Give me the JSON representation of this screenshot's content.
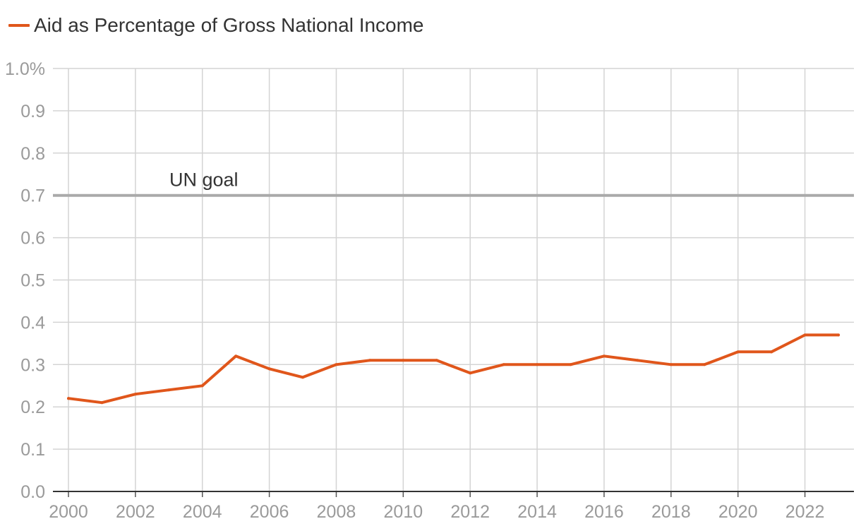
{
  "chart_data": {
    "type": "line",
    "title": "",
    "xlabel": "",
    "ylabel": "",
    "xlim": [
      2000,
      2023
    ],
    "ylim": [
      0,
      1.0
    ],
    "grid": true,
    "legend_placement": "top-left",
    "y_ticks": [
      "0.0",
      "0.1",
      "0.2",
      "0.3",
      "0.4",
      "0.5",
      "0.6",
      "0.7",
      "0.8",
      "0.9",
      "1.0%"
    ],
    "x_ticks": [
      "2000",
      "2002",
      "2004",
      "2006",
      "2008",
      "2010",
      "2012",
      "2014",
      "2016",
      "2018",
      "2020",
      "2022"
    ],
    "series": [
      {
        "name": "Aid as Percentage of Gross National Income",
        "color": "#e0561b",
        "x": [
          2000,
          2001,
          2002,
          2003,
          2004,
          2005,
          2006,
          2007,
          2008,
          2009,
          2010,
          2011,
          2012,
          2013,
          2014,
          2015,
          2016,
          2017,
          2018,
          2019,
          2020,
          2021,
          2022,
          2023
        ],
        "values": [
          0.22,
          0.21,
          0.23,
          0.24,
          0.25,
          0.32,
          0.29,
          0.27,
          0.3,
          0.31,
          0.31,
          0.31,
          0.28,
          0.3,
          0.3,
          0.3,
          0.32,
          0.31,
          0.3,
          0.3,
          0.33,
          0.33,
          0.37,
          0.37
        ]
      }
    ],
    "reference_line": {
      "label": "UN goal",
      "value": 0.7,
      "color": "#aaaaaa"
    }
  }
}
